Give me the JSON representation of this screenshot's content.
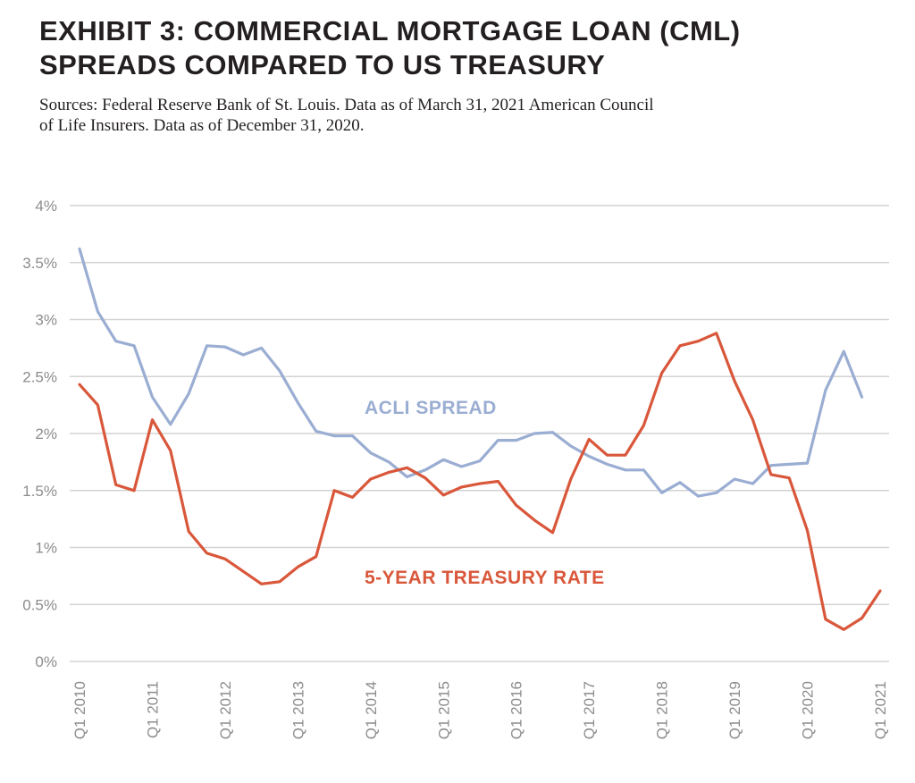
{
  "title": {
    "line1": "EXHIBIT 3: COMMERCIAL MORTGAGE LOAN (CML)",
    "line2": "SPREADS COMPARED TO US TREASURY"
  },
  "subtitle": {
    "line1": "Sources: Federal Reserve Bank of St. Louis. Data as of March 31, 2021  American Council",
    "line2": "of Life Insurers. Data as of December 31, 2020."
  },
  "chart_data": {
    "type": "line",
    "ylim": [
      0,
      4
    ],
    "y_ticks": [
      0,
      0.5,
      1,
      1.5,
      2,
      2.5,
      3,
      3.5,
      4
    ],
    "y_tick_labels": [
      "0%",
      "0.5%",
      "1%",
      "1.5%",
      "2%",
      "2.5%",
      "3%",
      "3.5%",
      "4%"
    ],
    "x_labels": [
      "Q1 2010",
      "Q1 2011",
      "Q1 2012",
      "Q1 2013",
      "Q1 2014",
      "Q1 2015",
      "Q1 2016",
      "Q1 2017",
      "Q1 2018",
      "Q1 2019",
      "Q1 2020",
      "Q1 2021"
    ],
    "x_period_count": 45,
    "grid": "horizontal",
    "series": [
      {
        "name": "ACLI SPREAD",
        "color": "#9aadd2",
        "values": [
          3.62,
          3.07,
          2.81,
          2.77,
          2.32,
          2.08,
          2.35,
          2.77,
          2.76,
          2.69,
          2.75,
          2.55,
          2.27,
          2.02,
          1.98,
          1.98,
          1.83,
          1.75,
          1.62,
          1.68,
          1.77,
          1.71,
          1.76,
          1.94,
          1.94,
          2.0,
          2.01,
          1.89,
          1.8,
          1.73,
          1.68,
          1.68,
          1.48,
          1.57,
          1.45,
          1.48,
          1.6,
          1.56,
          1.72,
          1.73,
          1.74,
          2.38,
          2.72,
          2.32
        ]
      },
      {
        "name": "5-YEAR TREASURY RATE",
        "color": "#d9573a",
        "values": [
          2.43,
          2.25,
          1.55,
          1.5,
          2.12,
          1.85,
          1.14,
          0.95,
          0.9,
          0.79,
          0.68,
          0.7,
          0.83,
          0.92,
          1.5,
          1.44,
          1.6,
          1.66,
          1.7,
          1.61,
          1.46,
          1.53,
          1.56,
          1.58,
          1.37,
          1.24,
          1.13,
          1.6,
          1.95,
          1.81,
          1.81,
          2.07,
          2.53,
          2.77,
          2.81,
          2.88,
          2.46,
          2.12,
          1.64,
          1.61,
          1.15,
          0.37,
          0.28,
          0.38,
          0.62
        ]
      }
    ]
  }
}
